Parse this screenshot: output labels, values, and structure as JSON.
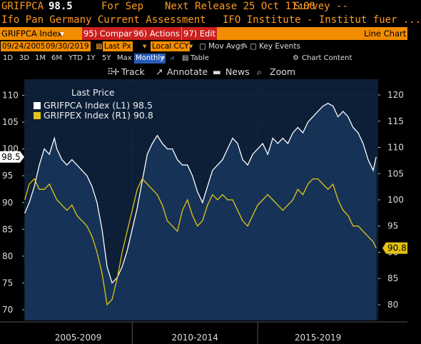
{
  "header": {
    "ticker": "GRIFPCA",
    "last_value": "98.5",
    "period": "For Sep",
    "next_release": "Next Release 25 Oct 11:00",
    "survey": "Survey --",
    "description": "Ifo Pan Germany Current Assessment",
    "source": "IFO Institute - Institut fuer ..."
  },
  "command_bar": {
    "security": "GRIFPCA Index",
    "compare": "95) Compare",
    "actions": "96) Actions",
    "edit": "97) Edit",
    "view": "Line Chart"
  },
  "options_bar": {
    "start_date": "09/24/2005",
    "end_date": "09/30/2019",
    "field": "Last Px",
    "currency": "Local CCY",
    "mov_avgs": "Mov Avgs",
    "key_events": "Key Events"
  },
  "range_bar": {
    "ranges": [
      "1D",
      "3D",
      "1M",
      "6M",
      "YTD",
      "1Y",
      "5Y",
      "Max"
    ],
    "frequency": "Monthly",
    "table": "Table",
    "chart_content": "Chart Content"
  },
  "toolbar": {
    "track": "Track",
    "annotate": "Annotate",
    "news": "News",
    "zoom": "Zoom"
  },
  "colors": {
    "accent": "#f28c00",
    "series1": "#ffffff",
    "series2": "#e3c315",
    "plot_bg": "#0c1f36",
    "area_fill": "#163357"
  },
  "chart_data": {
    "type": "line",
    "legend_title": "Last Price",
    "legend_position": "top-left",
    "x_labels": [
      "2005-2009",
      "2010-2014",
      "2015-2019"
    ],
    "x_range": [
      2005.7,
      2019.8
    ],
    "grid": true,
    "left_axis": {
      "range": [
        68,
        113
      ],
      "ticks": [
        70,
        75,
        80,
        85,
        90,
        95,
        100,
        105,
        110
      ]
    },
    "right_axis": {
      "range": [
        77,
        123
      ],
      "ticks": [
        80,
        85,
        90,
        95,
        100,
        105,
        110,
        115,
        120
      ]
    },
    "series": [
      {
        "name": "GRIFPCA Index (L1) 98.5",
        "axis": "left",
        "current": "98.5",
        "x": [
          2005.72,
          2005.9,
          2006.1,
          2006.3,
          2006.5,
          2006.7,
          2006.9,
          2007.0,
          2007.2,
          2007.4,
          2007.6,
          2007.8,
          2008.0,
          2008.2,
          2008.4,
          2008.6,
          2008.8,
          2009.0,
          2009.2,
          2009.4,
          2009.6,
          2009.8,
          2010.0,
          2010.2,
          2010.4,
          2010.6,
          2010.8,
          2011.0,
          2011.2,
          2011.4,
          2011.6,
          2011.8,
          2012.0,
          2012.2,
          2012.4,
          2012.6,
          2012.8,
          2013.0,
          2013.2,
          2013.4,
          2013.6,
          2013.8,
          2014.0,
          2014.2,
          2014.4,
          2014.6,
          2014.8,
          2015.0,
          2015.2,
          2015.4,
          2015.6,
          2015.8,
          2016.0,
          2016.2,
          2016.4,
          2016.6,
          2016.8,
          2017.0,
          2017.2,
          2017.4,
          2017.6,
          2017.8,
          2018.0,
          2018.2,
          2018.4,
          2018.6,
          2018.8,
          2019.0,
          2019.2,
          2019.4,
          2019.6,
          2019.72
        ],
        "values": [
          88,
          90,
          93,
          97,
          100,
          99,
          102,
          100,
          98,
          97,
          98,
          97,
          96,
          95,
          93,
          90,
          85,
          78,
          75,
          76,
          78,
          81,
          85,
          89,
          94,
          99,
          101,
          102.5,
          101,
          100,
          100,
          98,
          97,
          97,
          95,
          92,
          90,
          93,
          96,
          97,
          98,
          100,
          102,
          101,
          98,
          97,
          99,
          100,
          101,
          99,
          102,
          101,
          102,
          101,
          103,
          104,
          103,
          105,
          106,
          107,
          108,
          108.5,
          108,
          106,
          107,
          106,
          104,
          103,
          101,
          98,
          96,
          98.5
        ]
      },
      {
        "name": "GRIFPEX Index (R1) 90.8",
        "axis": "right",
        "current": "90.8",
        "x": [
          2005.72,
          2005.9,
          2006.1,
          2006.3,
          2006.5,
          2006.7,
          2006.9,
          2007.0,
          2007.2,
          2007.4,
          2007.6,
          2007.8,
          2008.0,
          2008.2,
          2008.4,
          2008.6,
          2008.8,
          2009.0,
          2009.2,
          2009.4,
          2009.6,
          2009.8,
          2010.0,
          2010.2,
          2010.4,
          2010.6,
          2010.8,
          2011.0,
          2011.2,
          2011.4,
          2011.6,
          2011.8,
          2012.0,
          2012.2,
          2012.4,
          2012.6,
          2012.8,
          2013.0,
          2013.2,
          2013.4,
          2013.6,
          2013.8,
          2014.0,
          2014.2,
          2014.4,
          2014.6,
          2014.8,
          2015.0,
          2015.2,
          2015.4,
          2015.6,
          2015.8,
          2016.0,
          2016.2,
          2016.4,
          2016.6,
          2016.8,
          2017.0,
          2017.2,
          2017.4,
          2017.6,
          2017.8,
          2018.0,
          2018.2,
          2018.4,
          2018.6,
          2018.8,
          2019.0,
          2019.2,
          2019.4,
          2019.6,
          2019.72
        ],
        "values": [
          100,
          103,
          104,
          102,
          102,
          103,
          101,
          100,
          99,
          98,
          99,
          97,
          96,
          95,
          93,
          90,
          86,
          80,
          81,
          85,
          90,
          94,
          98,
          102,
          104,
          103,
          102,
          101,
          99,
          96,
          95,
          94,
          98,
          100,
          97,
          95,
          96,
          99,
          101,
          100,
          101,
          100,
          100,
          98,
          96,
          95,
          97,
          99,
          100,
          101,
          100,
          99,
          98,
          99,
          100,
          102,
          101,
          103,
          104,
          104,
          103,
          102,
          103,
          100,
          98,
          97,
          95,
          95,
          94,
          93,
          92,
          90.8
        ]
      }
    ]
  }
}
